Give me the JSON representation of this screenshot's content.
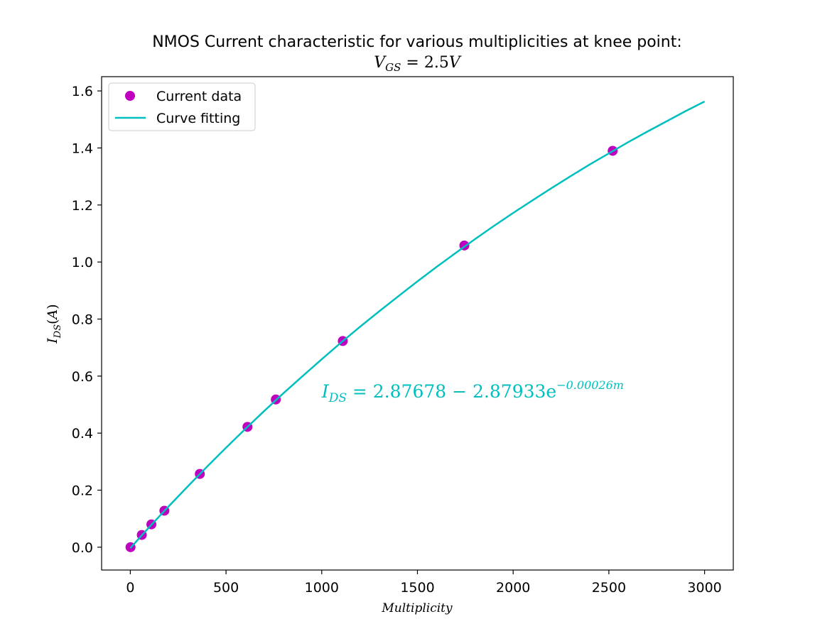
{
  "chart_data": {
    "type": "scatter",
    "title": "NMOS Current characteristic for various multiplicities at knee point:",
    "subtitle": "V_{GS} = 2.5V",
    "xlabel": "Multiplicity",
    "ylabel": "I_{DS}(A)",
    "xlim": [
      -150,
      3150
    ],
    "ylim": [
      -0.08,
      1.65
    ],
    "xticks": [
      0,
      500,
      1000,
      1500,
      2000,
      2500,
      3000
    ],
    "yticks": [
      0.0,
      0.2,
      0.4,
      0.6,
      0.8,
      1.0,
      1.2,
      1.4,
      1.6
    ],
    "grid": false,
    "legend_position": "top-left",
    "series": [
      {
        "name": "Current data",
        "kind": "scatter",
        "color": "#bf00bf",
        "x": [
          1,
          60,
          110,
          178,
          363,
          612,
          760,
          1110,
          1745,
          2520
        ],
        "y": [
          0.0,
          0.043,
          0.08,
          0.128,
          0.257,
          0.422,
          0.518,
          0.723,
          1.058,
          1.39
        ]
      },
      {
        "name": "Curve fitting",
        "kind": "line",
        "color": "#00bfbf",
        "x": [
          0,
          100,
          200,
          300,
          400,
          500,
          600,
          700,
          800,
          900,
          1000,
          1100,
          1200,
          1300,
          1400,
          1500,
          1600,
          1700,
          1800,
          1900,
          2000,
          2100,
          2200,
          2300,
          2400,
          2500,
          2600,
          2700,
          2800,
          2900,
          3000
        ],
        "y": [
          -0.003,
          0.071,
          0.143,
          0.213,
          0.282,
          0.349,
          0.414,
          0.478,
          0.54,
          0.6,
          0.659,
          0.717,
          0.773,
          0.827,
          0.88,
          0.932,
          0.983,
          1.032,
          1.08,
          1.127,
          1.172,
          1.216,
          1.259,
          1.301,
          1.342,
          1.381,
          1.42,
          1.457,
          1.493,
          1.529,
          1.563
        ]
      }
    ],
    "annotation": {
      "text_main": "I",
      "text_sub": "DS",
      "text_eq": " = 2.87678 − 2.87933e",
      "text_exp": "−0.00026m",
      "color": "#00bfbf",
      "x": 1000,
      "y": 0.5
    }
  }
}
